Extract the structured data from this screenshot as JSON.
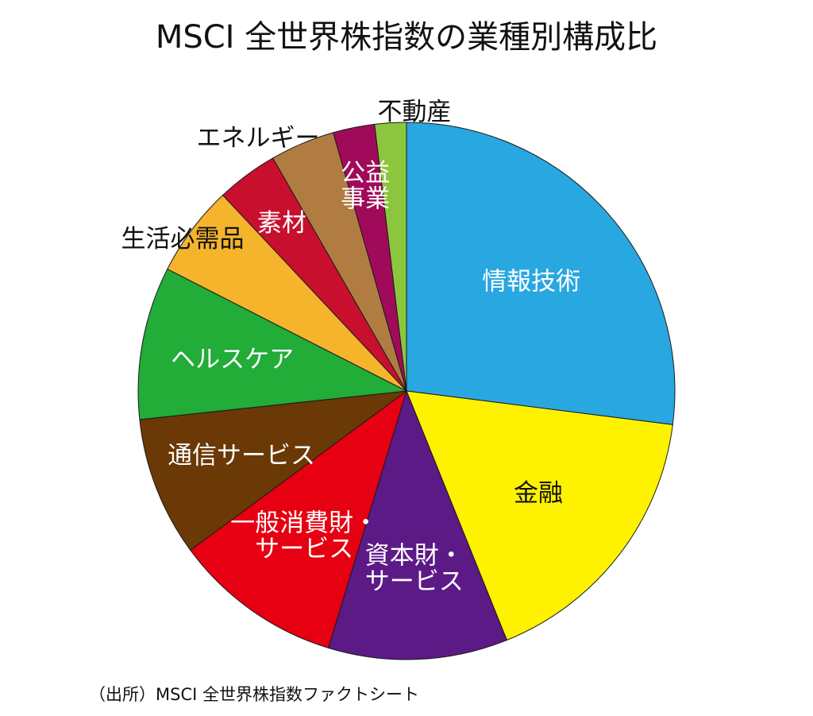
{
  "chart_data": {
    "type": "pie",
    "title": "MSCI 全世界株指数の業種別構成比",
    "slices": [
      {
        "label": "情報技術",
        "lines": [
          "情報技術"
        ],
        "value": 27.0,
        "color": "#29a7e1",
        "text_color": "#ffffff"
      },
      {
        "label": "金融",
        "lines": [
          "金融"
        ],
        "value": 16.9,
        "color": "#fff200",
        "text_color": "#111111"
      },
      {
        "label": "資本財・サービス",
        "lines": [
          "資本財・",
          "サービス"
        ],
        "value": 10.8,
        "color": "#5c1a86",
        "text_color": "#ffffff"
      },
      {
        "label": "一般消費財・サービス",
        "lines": [
          "一般消費財・",
          "サービス"
        ],
        "value": 10.2,
        "color": "#e60012",
        "text_color": "#ffffff"
      },
      {
        "label": "通信サービス",
        "lines": [
          "通信サービス"
        ],
        "value": 8.4,
        "color": "#6b3906",
        "text_color": "#ffffff"
      },
      {
        "label": "ヘルスケア",
        "lines": [
          "ヘルスケア"
        ],
        "value": 9.2,
        "color": "#22ac38",
        "text_color": "#ffffff"
      },
      {
        "label": "生活必需品",
        "lines": [
          "生活必需品"
        ],
        "value": 5.5,
        "color": "#f6b42d",
        "text_color": "#111111",
        "outside": true
      },
      {
        "label": "素材",
        "lines": [
          "素材"
        ],
        "value": 3.7,
        "color": "#c8102e",
        "text_color": "#ffffff"
      },
      {
        "label": "エネルギー",
        "lines": [
          "エネルギー"
        ],
        "value": 3.9,
        "color": "#b07c42",
        "text_color": "#111111",
        "outside": true
      },
      {
        "label": "公益事業",
        "lines": [
          "公益",
          "事業"
        ],
        "value": 2.5,
        "color": "#a10a5a",
        "text_color": "#ffffff"
      },
      {
        "label": "不動産",
        "lines": [
          "不動産"
        ],
        "value": 1.9,
        "color": "#8cc63f",
        "text_color": "#111111",
        "outside": true
      }
    ],
    "start_angle_deg": 0,
    "direction": "clockwise",
    "legend": "none"
  },
  "source_note": "（出所）MSCI 全世界株指数ファクトシート"
}
